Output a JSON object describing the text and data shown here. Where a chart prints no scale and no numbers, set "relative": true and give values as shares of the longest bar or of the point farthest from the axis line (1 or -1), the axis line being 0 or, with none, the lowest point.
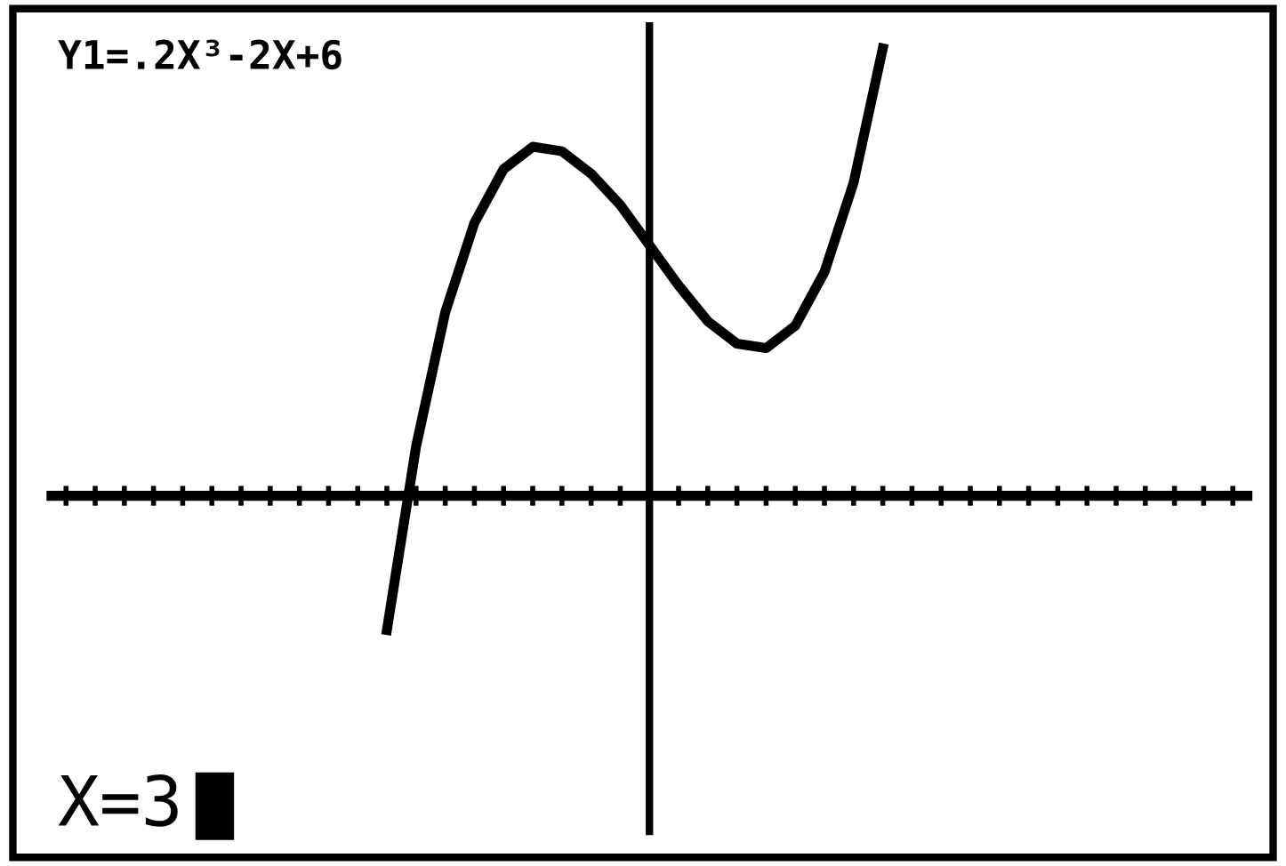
{
  "chart_data": {
    "type": "line",
    "relative": true,
    "color": "#000000",
    "line_style": "solid",
    "marker": "none",
    "grid": false,
    "categories": [
      null,
      null,
      null,
      null,
      null,
      null,
      null,
      null,
      null,
      null,
      null,
      null,
      null,
      null,
      null,
      null,
      null,
      null,
      null,
      null,
      null,
      null,
      null,
      null,
      null,
      null,
      null,
      null,
      null,
      null,
      null,
      null,
      null,
      null,
      null,
      null,
      null,
      null,
      null,
      null,
      null
    ],
    "values": [
      null,
      null,
      null,
      null,
      null,
      null,
      null,
      null,
      null,
      null,
      null,
      -0.3,
      0.11,
      0.41,
      0.61,
      0.73,
      0.78,
      0.77,
      0.72,
      0.65,
      0.56,
      0.47,
      0.39,
      0.34,
      0.33,
      0.38,
      0.5,
      0.7,
      1.0,
      null,
      null,
      null,
      null,
      null,
      null,
      null,
      null,
      null,
      null,
      null,
      null
    ],
    "annotations": [
      "Y1=.2X³-2X+6",
      "X=3"
    ]
  }
}
